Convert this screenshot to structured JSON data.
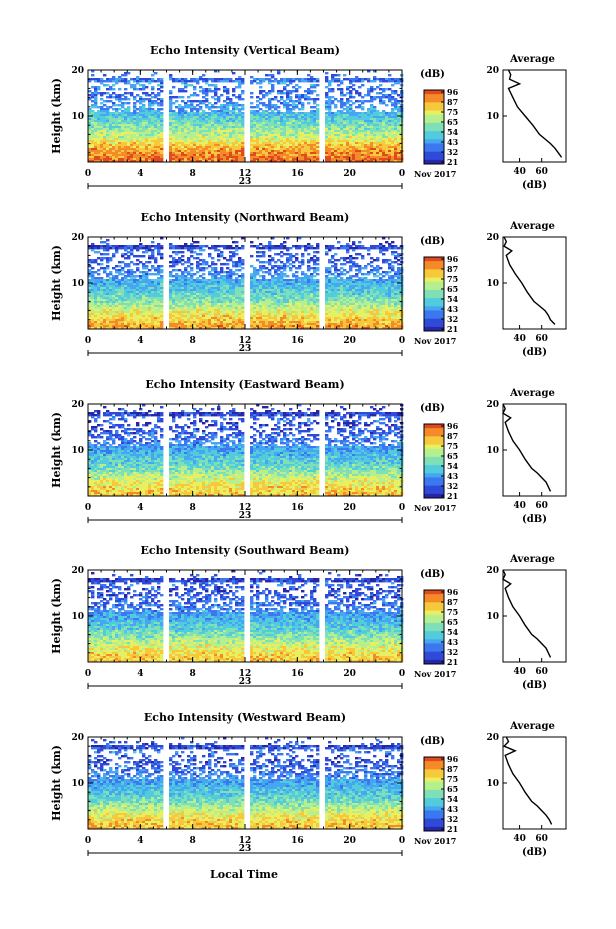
{
  "figure": {
    "height_label": "Height (km)",
    "xlabel": "Local Time",
    "date_center": "23",
    "date_right": "Nov 2017",
    "colorbar_unit": "(dB)",
    "colorbar_ticks": [
      "96",
      "87",
      "75",
      "65",
      "54",
      "43",
      "32",
      "21"
    ],
    "profile_title": "Average",
    "profile_xlabel": "(dB)",
    "colors": {
      "colormap": [
        "#2626a6",
        "#2f49d8",
        "#3b78f0",
        "#45a6f2",
        "#52ccdc",
        "#7fe0b8",
        "#b6ef8e",
        "#e8f062",
        "#f7c83c",
        "#f58a28",
        "#e04a20"
      ],
      "trace": "#000000",
      "background": "#ffffff"
    }
  },
  "chart_data": [
    {
      "type": "heatmap",
      "title": "Echo Intensity (Vertical Beam)",
      "x_ticks": [
        "0",
        "4",
        "8",
        "12",
        "16",
        "20",
        "0"
      ],
      "y_ticks": [
        "20",
        "10"
      ],
      "xlim": [
        0,
        24
      ],
      "ylim": [
        0,
        20
      ],
      "colorbar": {
        "label": "(dB)",
        "ticks": [
          96,
          87,
          75,
          65,
          54,
          43,
          32,
          21
        ]
      },
      "data_gaps_hours": [
        5.8,
        12.0,
        17.7
      ],
      "profile": {
        "title": "Average",
        "xlabel": "(dB)",
        "x_ticks": [
          "40",
          "60"
        ],
        "y_ticks": [
          "20",
          "10"
        ],
        "height_km": [
          1,
          2,
          3,
          4,
          5,
          6,
          8,
          10,
          12,
          14,
          16,
          17,
          18,
          19,
          20
        ],
        "intensity_db": [
          78,
          75,
          72,
          68,
          63,
          58,
          52,
          45,
          38,
          34,
          30,
          40,
          31,
          32,
          30
        ]
      }
    },
    {
      "type": "heatmap",
      "title": "Echo Intensity (Northward Beam)",
      "x_ticks": [
        "0",
        "4",
        "8",
        "12",
        "16",
        "20",
        "0"
      ],
      "y_ticks": [
        "20",
        "10"
      ],
      "xlim": [
        0,
        24
      ],
      "ylim": [
        0,
        20
      ],
      "colorbar": {
        "label": "(dB)",
        "ticks": [
          96,
          87,
          75,
          65,
          54,
          43,
          32,
          21
        ]
      },
      "data_gaps_hours": [
        5.8,
        12.0,
        17.7
      ],
      "profile": {
        "title": "Average",
        "xlabel": "(dB)",
        "x_ticks": [
          "40",
          "60"
        ],
        "y_ticks": [
          "20",
          "10"
        ],
        "height_km": [
          1,
          2,
          3,
          4,
          5,
          6,
          8,
          10,
          12,
          14,
          16,
          17,
          18,
          19,
          20
        ],
        "intensity_db": [
          72,
          68,
          66,
          63,
          58,
          53,
          47,
          42,
          36,
          31,
          28,
          33,
          26,
          28,
          26
        ]
      }
    },
    {
      "type": "heatmap",
      "title": "Echo Intensity (Eastward Beam)",
      "x_ticks": [
        "0",
        "4",
        "8",
        "12",
        "16",
        "20",
        "0"
      ],
      "y_ticks": [
        "20",
        "10"
      ],
      "xlim": [
        0,
        24
      ],
      "ylim": [
        0,
        20
      ],
      "colorbar": {
        "label": "(dB)",
        "ticks": [
          96,
          87,
          75,
          65,
          54,
          43,
          32,
          21
        ]
      },
      "data_gaps_hours": [
        5.8,
        12.0,
        17.7
      ],
      "profile": {
        "title": "Average",
        "xlabel": "(dB)",
        "x_ticks": [
          "40",
          "60"
        ],
        "y_ticks": [
          "20",
          "10"
        ],
        "height_km": [
          1,
          2,
          3,
          4,
          5,
          6,
          8,
          10,
          12,
          14,
          16,
          17,
          18,
          19,
          20
        ],
        "intensity_db": [
          68,
          66,
          64,
          60,
          56,
          51,
          45,
          40,
          34,
          30,
          27,
          32,
          25,
          27,
          25
        ]
      }
    },
    {
      "type": "heatmap",
      "title": "Echo Intensity (Southward Beam)",
      "x_ticks": [
        "0",
        "4",
        "8",
        "12",
        "16",
        "20",
        "0"
      ],
      "y_ticks": [
        "20",
        "10"
      ],
      "xlim": [
        0,
        24
      ],
      "ylim": [
        0,
        20
      ],
      "colorbar": {
        "label": "(dB)",
        "ticks": [
          96,
          87,
          75,
          65,
          54,
          43,
          32,
          21
        ]
      },
      "data_gaps_hours": [
        5.8,
        12.0,
        17.7
      ],
      "profile": {
        "title": "Average",
        "xlabel": "(dB)",
        "x_ticks": [
          "40",
          "60"
        ],
        "y_ticks": [
          "20",
          "10"
        ],
        "height_km": [
          1,
          2,
          3,
          4,
          5,
          6,
          8,
          10,
          12,
          14,
          16,
          17,
          18,
          19,
          20
        ],
        "intensity_db": [
          68,
          66,
          64,
          60,
          56,
          51,
          45,
          40,
          34,
          30,
          27,
          32,
          25,
          27,
          25
        ]
      }
    },
    {
      "type": "heatmap",
      "title": "Echo Intensity (Westward Beam)",
      "x_ticks": [
        "0",
        "4",
        "8",
        "12",
        "16",
        "20",
        "0"
      ],
      "y_ticks": [
        "20",
        "10"
      ],
      "xlim": [
        0,
        24
      ],
      "ylim": [
        0,
        20
      ],
      "colorbar": {
        "label": "(dB)",
        "ticks": [
          96,
          87,
          75,
          65,
          54,
          43,
          32,
          21
        ]
      },
      "data_gaps_hours": [
        5.8,
        12.0,
        17.7
      ],
      "profile": {
        "title": "Average",
        "xlabel": "(dB)",
        "x_ticks": [
          "40",
          "60"
        ],
        "y_ticks": [
          "20",
          "10"
        ],
        "height_km": [
          1,
          2,
          3,
          4,
          5,
          6,
          8,
          10,
          12,
          14,
          16,
          17,
          18,
          19,
          20
        ],
        "intensity_db": [
          69,
          67,
          64,
          60,
          56,
          51,
          45,
          40,
          34,
          30,
          27,
          36,
          26,
          30,
          28
        ]
      }
    }
  ]
}
